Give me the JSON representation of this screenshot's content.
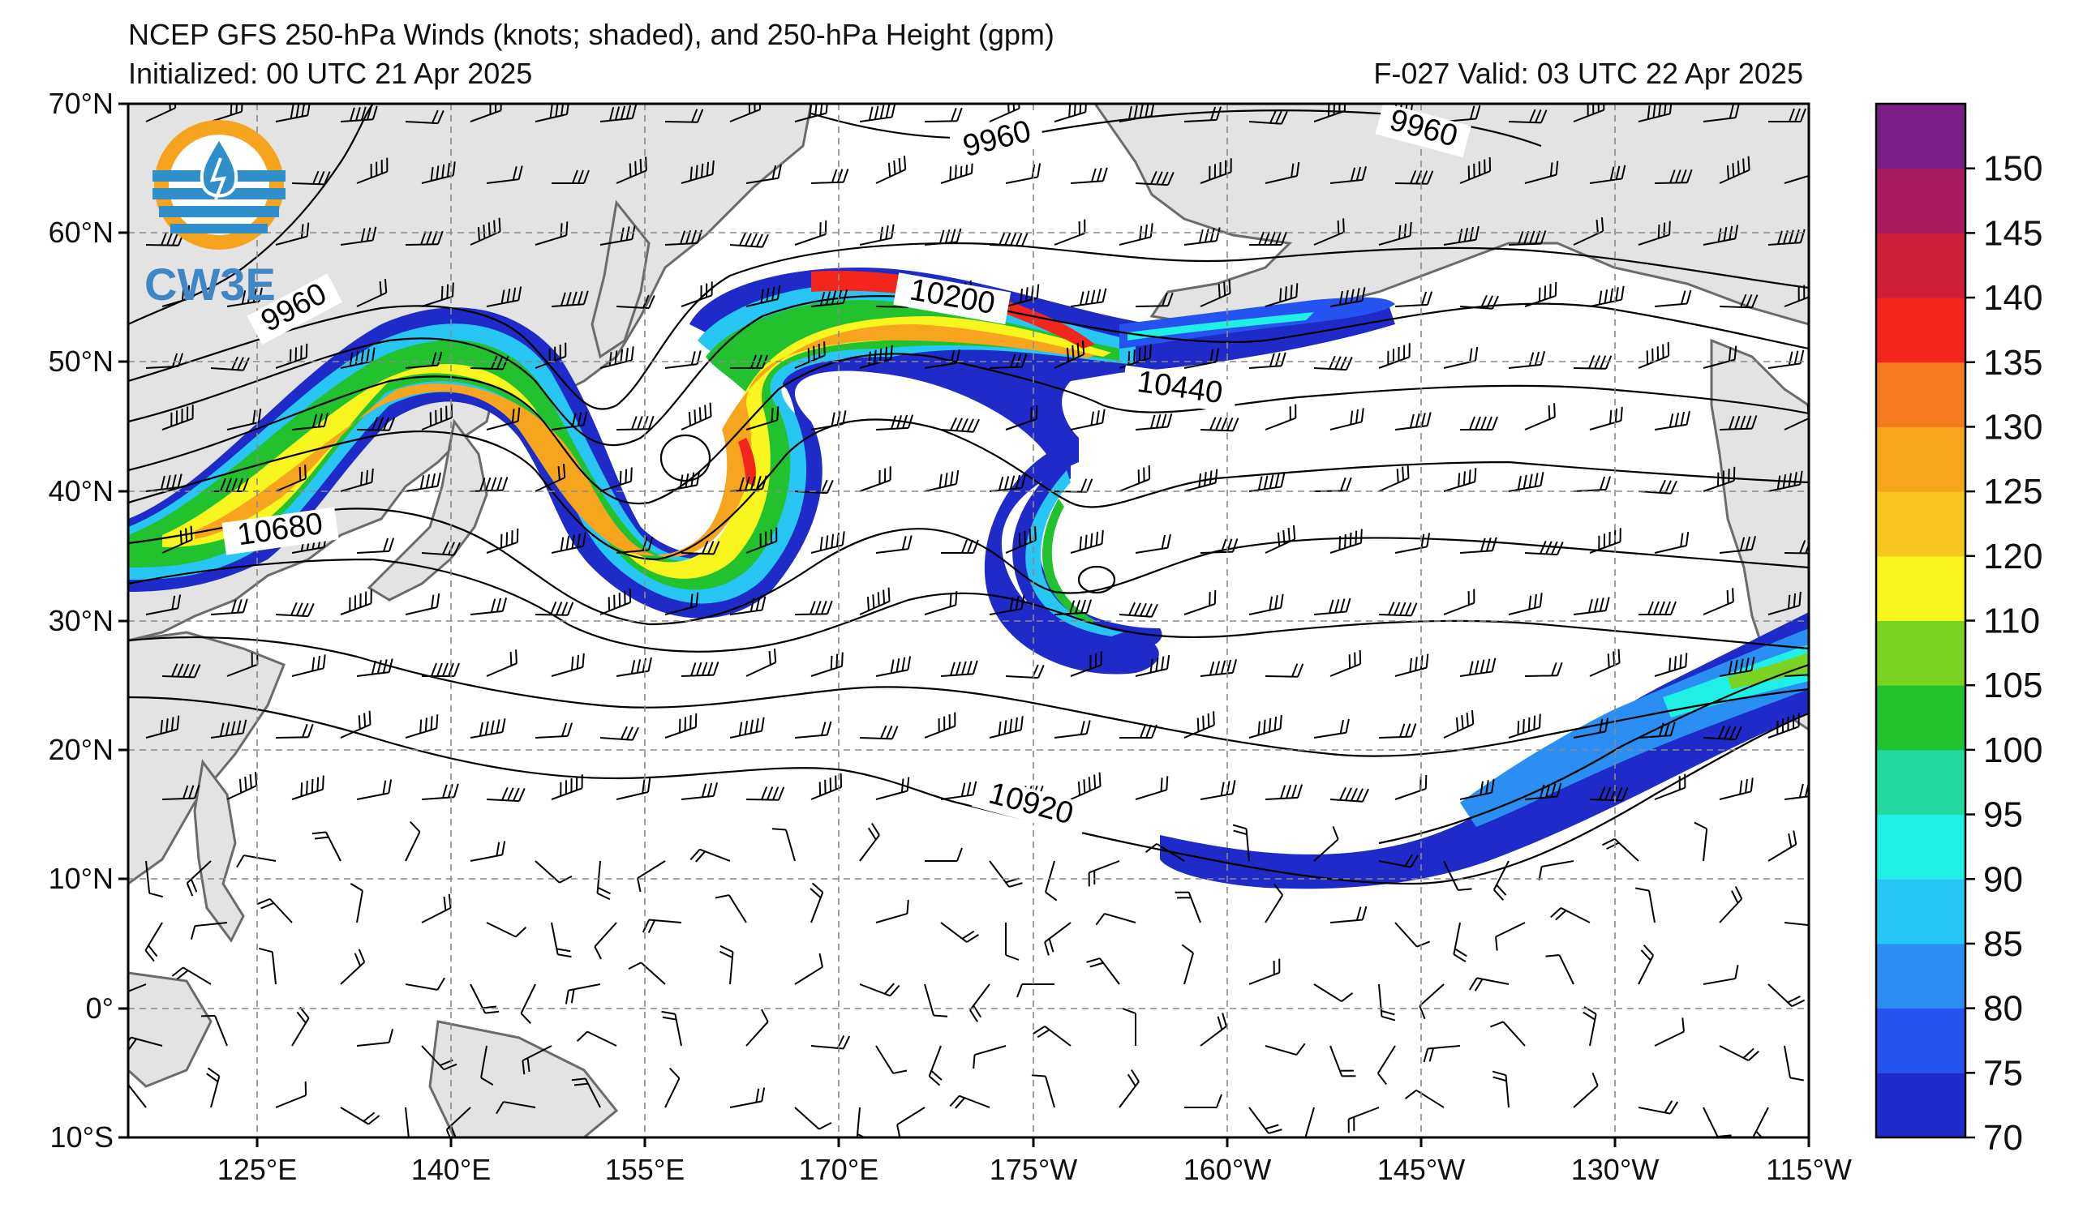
{
  "title": {
    "line1": "NCEP GFS 250-hPa Winds (knots; shaded), and 250-hPa Height (gpm)",
    "init": "Initialized: 00 UTC 21 Apr 2025",
    "valid": "F-027  Valid: 03 UTC 22 Apr 2025"
  },
  "logo": {
    "text": "CW3E"
  },
  "axes": {
    "lat_labels": [
      "70°N",
      "60°N",
      "50°N",
      "40°N",
      "30°N",
      "20°N",
      "10°N",
      "0°",
      "10°S"
    ],
    "lon_labels": [
      "125°E",
      "140°E",
      "155°E",
      "170°E",
      "175°W",
      "160°W",
      "145°W",
      "130°W",
      "115°W"
    ]
  },
  "contour_labels": [
    "9960",
    "9960",
    "9960",
    "10200",
    "10440",
    "10680",
    "10920"
  ],
  "colorbar": {
    "ticks": [
      "70",
      "75",
      "80",
      "85",
      "90",
      "95",
      "100",
      "105",
      "110",
      "120",
      "125",
      "130",
      "135",
      "140",
      "145",
      "150"
    ],
    "colors": [
      "#1f2bc8",
      "#2453f0",
      "#2a8ef2",
      "#27c6f5",
      "#20efe6",
      "#22d9a0",
      "#21c22e",
      "#7bd321",
      "#f8f51f",
      "#f8c51f",
      "#f7a51e",
      "#f67a1f",
      "#f3261d",
      "#cf1e3a",
      "#a81c5e",
      "#7a1d86"
    ]
  },
  "colors": {
    "land": "#e3e3e3",
    "coast": "#6b6b6b",
    "grid": "#8a8a8a",
    "contour": "#000000"
  }
}
